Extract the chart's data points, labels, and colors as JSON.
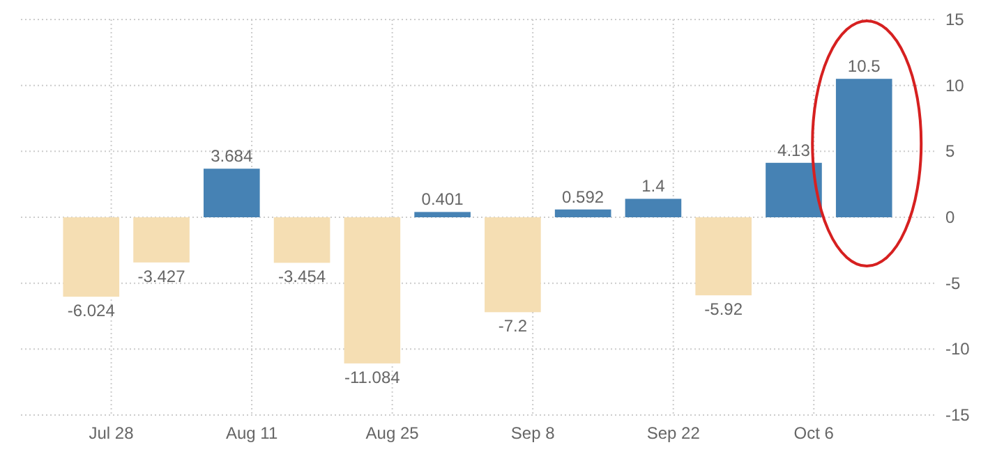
{
  "chart_data": {
    "type": "bar",
    "x": [
      "--07-26",
      "--08-02",
      "--08-09",
      "--08-16",
      "--08-23",
      "--08-30",
      "--09-06",
      "--09-13",
      "--09-20",
      "--09-27",
      "--10-04",
      "--10-11"
    ],
    "values": [
      -6.024,
      -3.427,
      3.684,
      -3.454,
      -11.084,
      0.401,
      -7.2,
      0.592,
      1.4,
      -5.92,
      4.13,
      10.5
    ],
    "colors": [
      "#f5deb3",
      "#f5deb3",
      "#4682b4",
      "#f5deb3",
      "#f5deb3",
      "#4682b4",
      "#f5deb3",
      "#4682b4",
      "#4682b4",
      "#f5deb3",
      "#4682b4",
      "#4682b4"
    ],
    "data_labels": true,
    "xlim": [
      "--07-19",
      "--10-18"
    ],
    "xticks": [
      {
        "value": "--07-28",
        "label": "Jul 28"
      },
      {
        "value": "--08-11",
        "label": "Aug 11"
      },
      {
        "value": "--08-25",
        "label": "Aug 25"
      },
      {
        "value": "--09-08",
        "label": "Sep 8"
      },
      {
        "value": "--09-22",
        "label": "Sep 22"
      },
      {
        "value": "--10-06",
        "label": "Oct 6"
      }
    ],
    "ylim": [
      -15,
      15
    ],
    "yticks": [
      -15,
      -10,
      -5,
      0,
      5,
      10,
      15
    ],
    "grid": true
  }
}
